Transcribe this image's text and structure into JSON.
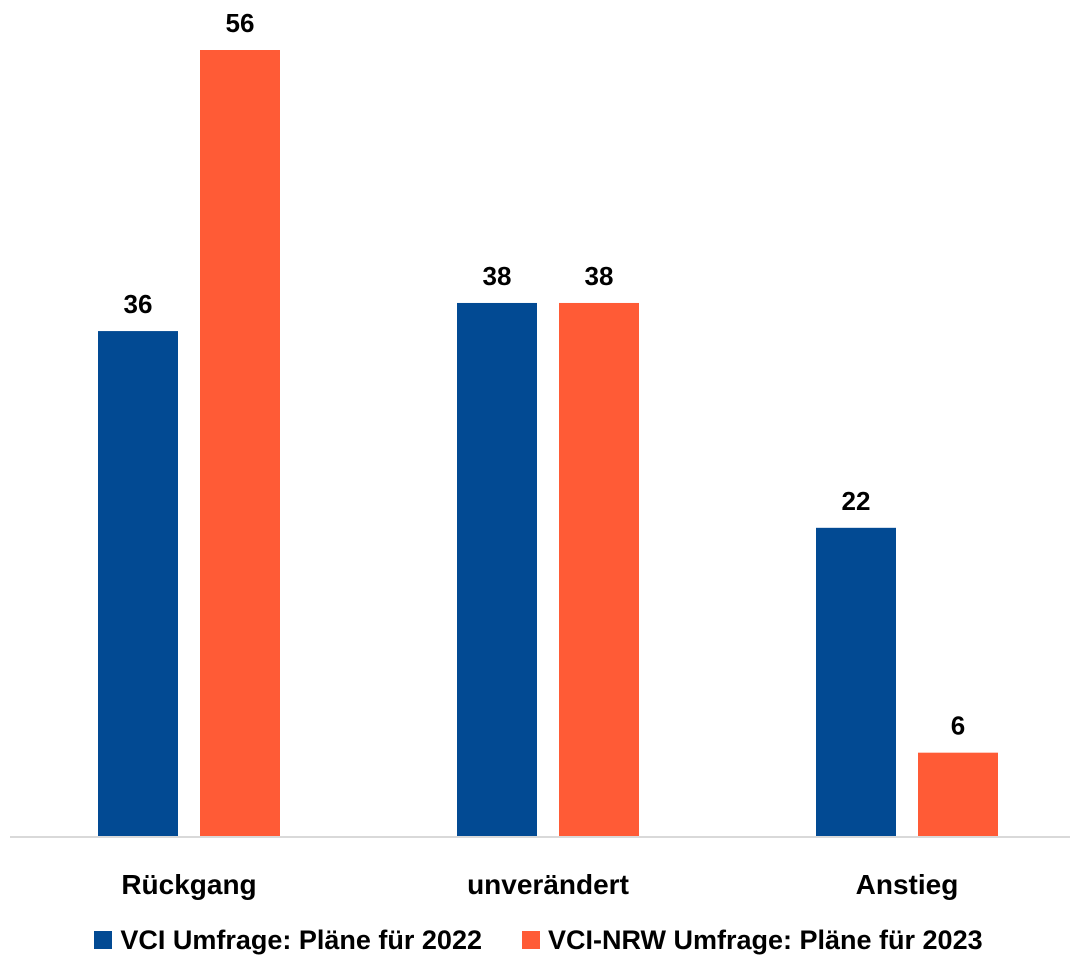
{
  "chart_data": {
    "type": "bar",
    "categories": [
      "Rückgang",
      "unverändert",
      "Anstieg"
    ],
    "series": [
      {
        "name": "VCI Umfrage: Pläne für 2022",
        "values": [
          36,
          38,
          22
        ],
        "color": "#024A93"
      },
      {
        "name": "VCI-NRW Umfrage: Pläne für 2023",
        "values": [
          56,
          38,
          6
        ],
        "color": "#FF5B36"
      }
    ],
    "ylim": [
      0,
      56
    ],
    "grid": false,
    "legend_position": "bottom",
    "data_labels": true,
    "baseline_color": "#D9D9D9"
  }
}
